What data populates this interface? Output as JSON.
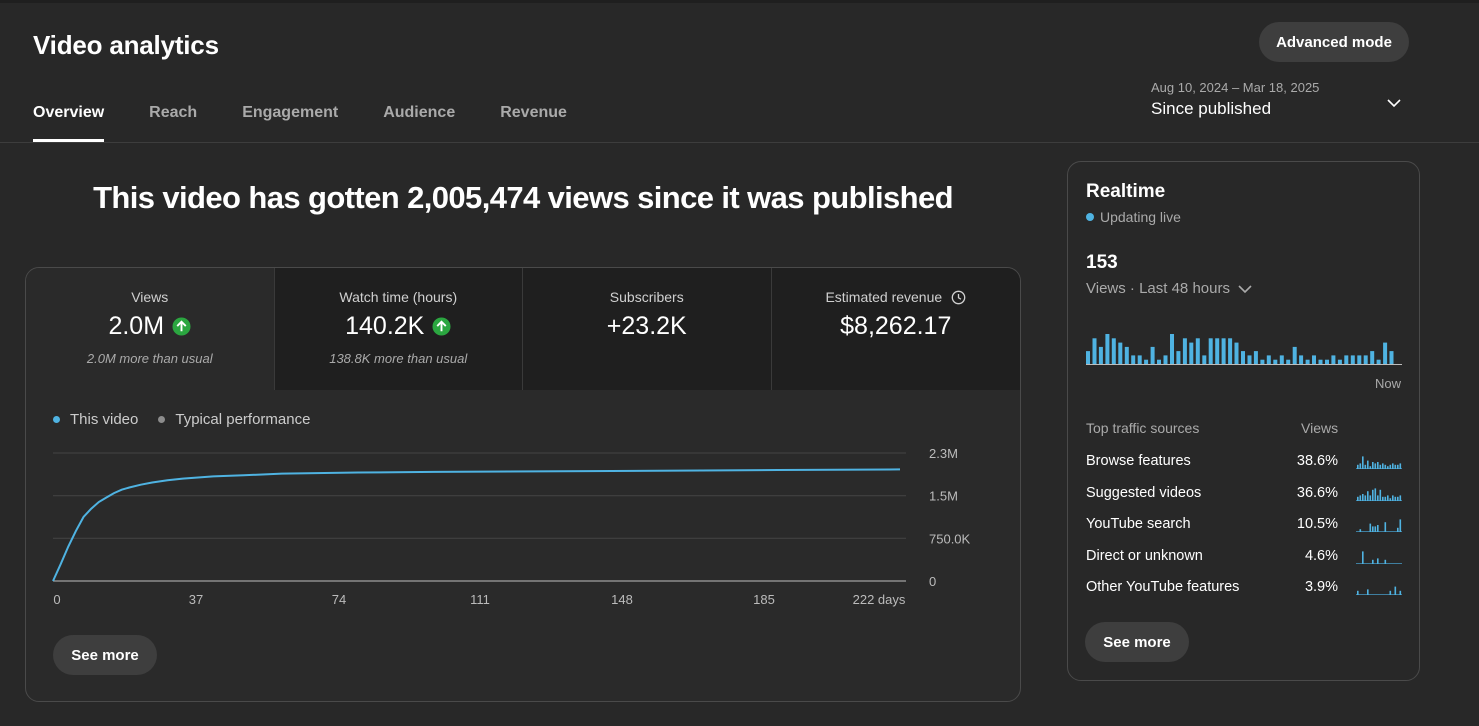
{
  "header": {
    "title": "Video analytics",
    "advanced_button": "Advanced mode",
    "tabs": [
      "Overview",
      "Reach",
      "Engagement",
      "Audience",
      "Revenue"
    ],
    "active_tab": "Overview",
    "date_range": {
      "dates": "Aug 10, 2024 – Mar 18, 2025",
      "label": "Since published"
    }
  },
  "headline": "This video has gotten 2,005,474 views since it was published",
  "metrics": [
    {
      "label": "Views",
      "value": "2.0M",
      "note": "2.0M more than usual",
      "trend": "up"
    },
    {
      "label": "Watch time (hours)",
      "value": "140.2K",
      "note": "138.8K more than usual",
      "trend": "up"
    },
    {
      "label": "Subscribers",
      "value": "+23.2K",
      "note": ""
    },
    {
      "label": "Estimated revenue",
      "value": "$8,262.17",
      "note": ""
    }
  ],
  "legend": {
    "this_video": "This video",
    "typical": "Typical performance"
  },
  "chart_data": {
    "type": "line",
    "x_ticks": [
      "0",
      "37",
      "74",
      "111",
      "148",
      "185",
      "222 days"
    ],
    "y_ticks": [
      "2.3M",
      "1.5M",
      "750.0K",
      "0"
    ],
    "ylim": [
      0,
      2300000
    ],
    "xlim": [
      0,
      222
    ],
    "series": [
      {
        "name": "This video",
        "color": "#4fb3e2",
        "x": [
          0,
          2,
          4,
          6,
          8,
          10,
          12,
          14,
          16,
          18,
          20,
          23,
          26,
          30,
          34,
          38,
          42,
          50,
          60,
          80,
          100,
          140,
          170,
          190,
          222
        ],
        "y": [
          0,
          300000,
          620000,
          900000,
          1150000,
          1300000,
          1420000,
          1500000,
          1580000,
          1640000,
          1680000,
          1730000,
          1770000,
          1810000,
          1840000,
          1860000,
          1880000,
          1900000,
          1930000,
          1950000,
          1960000,
          1975000,
          1985000,
          1995000,
          2005474
        ]
      }
    ]
  },
  "see_more": "See more",
  "realtime": {
    "title": "Realtime",
    "status": "Updating live",
    "count": "153",
    "period": "Views · Last 48 hours",
    "now_label": "Now",
    "bars": [
      3,
      6,
      4,
      7,
      6,
      5,
      4,
      2,
      2,
      1,
      4,
      1,
      2,
      7,
      3,
      6,
      5,
      6,
      2,
      6,
      6,
      6,
      6,
      5,
      3,
      2,
      3,
      1,
      2,
      1,
      2,
      1,
      4,
      2,
      1,
      2,
      1,
      1,
      2,
      1,
      2,
      2,
      2,
      2,
      3,
      1,
      5,
      3
    ],
    "traffic_header": "Top traffic sources",
    "traffic_col": "Views",
    "sources": [
      {
        "name": "Browse features",
        "pct": "38.6%",
        "spark": [
          3,
          4,
          9,
          3,
          6,
          2,
          5,
          4,
          5,
          3,
          4,
          3,
          2,
          3,
          4,
          3,
          3,
          4
        ]
      },
      {
        "name": "Suggested videos",
        "pct": "36.6%",
        "spark": [
          3,
          4,
          5,
          4,
          7,
          4,
          8,
          9,
          4,
          8,
          3,
          3,
          4,
          2,
          4,
          3,
          3,
          4
        ]
      },
      {
        "name": "YouTube search",
        "pct": "10.5%",
        "spark": [
          0,
          2,
          0,
          0,
          0,
          6,
          4,
          4,
          5,
          0,
          0,
          7,
          0,
          0,
          0,
          0,
          3,
          9
        ]
      },
      {
        "name": "Direct or unknown",
        "pct": "4.6%",
        "spark": [
          0,
          0,
          9,
          0,
          0,
          0,
          3,
          0,
          4,
          0,
          0,
          3,
          0,
          0,
          0,
          0,
          0,
          0
        ]
      },
      {
        "name": "Other YouTube features",
        "pct": "3.9%",
        "spark": [
          3,
          0,
          0,
          0,
          4,
          0,
          0,
          0,
          0,
          0,
          0,
          0,
          0,
          3,
          0,
          6,
          0,
          3
        ]
      }
    ],
    "see_more": "See more"
  }
}
